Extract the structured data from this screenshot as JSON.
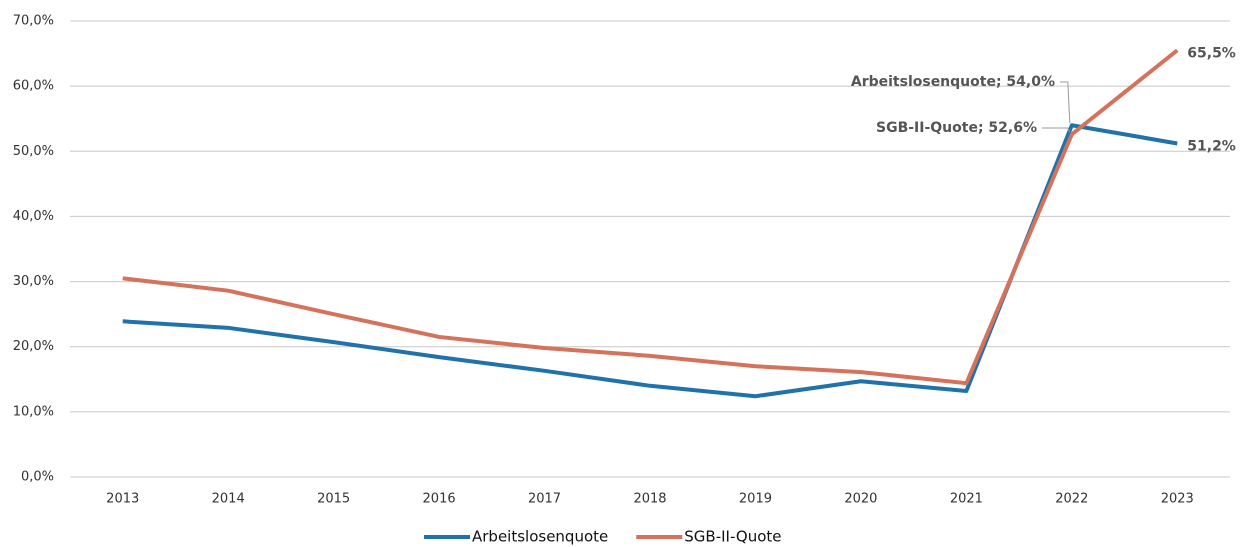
{
  "chart_data": {
    "type": "line",
    "categories": [
      "2013",
      "2014",
      "2015",
      "2016",
      "2017",
      "2018",
      "2019",
      "2020",
      "2021",
      "2022",
      "2023"
    ],
    "series": [
      {
        "name": "Arbeitslosenquote",
        "color": "#1f72aa",
        "values": [
          23.9,
          22.9,
          20.7,
          18.4,
          16.3,
          14.0,
          12.4,
          14.7,
          13.2,
          54.0,
          51.2
        ],
        "value_labels": [
          null,
          null,
          null,
          null,
          null,
          null,
          null,
          null,
          null,
          "Arbeitslosenquote; 54,0%",
          "51,2%"
        ]
      },
      {
        "name": "SGB-II-Quote",
        "color": "#d4725c",
        "values": [
          30.5,
          28.6,
          25.0,
          21.5,
          19.8,
          18.6,
          17.0,
          16.1,
          14.4,
          52.6,
          65.5
        ],
        "value_labels": [
          null,
          null,
          null,
          null,
          null,
          null,
          null,
          null,
          null,
          "SGB-II-Quote; 52,6%",
          "65,5%"
        ]
      }
    ],
    "ylim": [
      0,
      70
    ],
    "yticks": [
      {
        "value": 0,
        "label": "0,0%"
      },
      {
        "value": 10,
        "label": "10,0%"
      },
      {
        "value": 20,
        "label": "20,0%"
      },
      {
        "value": 30,
        "label": "30,0%"
      },
      {
        "value": 40,
        "label": "40,0%"
      },
      {
        "value": 50,
        "label": "50,0%"
      },
      {
        "value": 60,
        "label": "60,0%"
      },
      {
        "value": 70,
        "label": "70,0%"
      }
    ],
    "grid": true,
    "legend": "bottom"
  }
}
